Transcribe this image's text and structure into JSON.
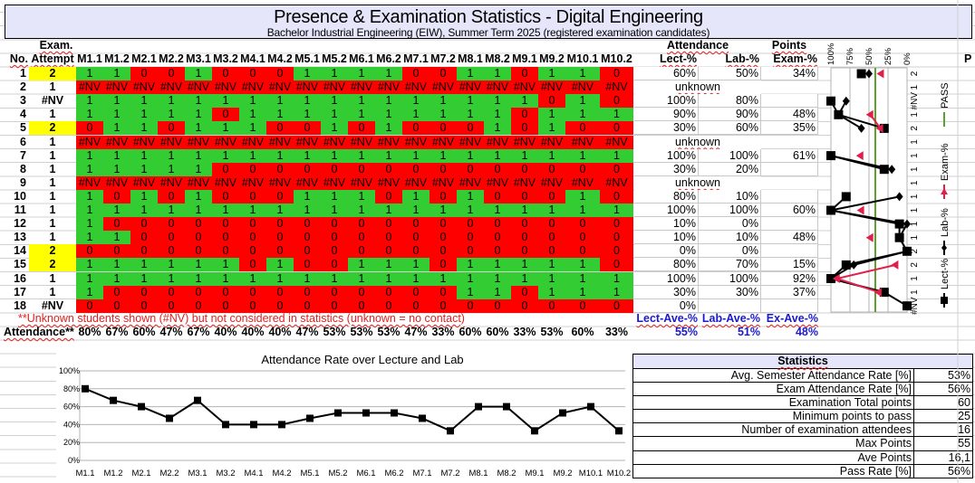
{
  "title": "Presence & Examination Statistics - Digital Engineering",
  "subtitle": "Bachelor Industrial Engineering (EIW), Summer Term 2025 (registered examination candidates)",
  "headers": {
    "no": "No.",
    "exam_top": "Exam.",
    "attempt": "Attempt",
    "attendance_group": "Attendance",
    "points_group": "Points",
    "lect": "Lect-%",
    "lab": "Lab-%",
    "exam": "Exam-%",
    "cut_column": "P"
  },
  "modules": [
    "M1.1",
    "M1.2",
    "M2.1",
    "M2.2",
    "M3.1",
    "M3.2",
    "M4.1",
    "M4.2",
    "M5.1",
    "M5.2",
    "M6.1",
    "M6.2",
    "M7.1",
    "M7.2",
    "M8.1",
    "M8.2",
    "M9.1",
    "M9.2",
    "M10.1",
    "M10.2"
  ],
  "colors": {
    "present": "#33cc33",
    "absent": "#ff0000",
    "repeat_attempt": "#ffff00",
    "header_fill": "#e6e6fa",
    "average_text": "#1a1acc",
    "pass_line": "#5aa02c",
    "exam_series": "#e0204a"
  },
  "unknown_label": "unknown",
  "rows": [
    {
      "no": "1",
      "attempt": "2",
      "marks": [
        "1",
        "1",
        "0",
        "0",
        "1",
        "0",
        "0",
        "0",
        "1",
        "1",
        "1",
        "1",
        "0",
        "0",
        "1",
        "1",
        "0",
        "1",
        "1",
        "0"
      ],
      "lect": "60%",
      "lab": "50%",
      "exam": "34%"
    },
    {
      "no": "2",
      "attempt": "1",
      "marks": [
        "#NV",
        "#NV",
        "#NV",
        "#NV",
        "#NV",
        "#NV",
        "#NV",
        "#NV",
        "#NV",
        "#NV",
        "#NV",
        "#NV",
        "#NV",
        "#NV",
        "#NV",
        "#NV",
        "#NV",
        "#NV",
        "#NV",
        "#NV"
      ],
      "unknown": true
    },
    {
      "no": "3",
      "attempt": "#NV",
      "marks": [
        "1",
        "1",
        "1",
        "1",
        "1",
        "1",
        "1",
        "1",
        "1",
        "1",
        "1",
        "1",
        "1",
        "1",
        "1",
        "1",
        "1",
        "0",
        "1",
        "0"
      ],
      "lect": "100%",
      "lab": "80%",
      "exam": ""
    },
    {
      "no": "4",
      "attempt": "1",
      "marks": [
        "1",
        "1",
        "1",
        "1",
        "1",
        "0",
        "1",
        "1",
        "1",
        "1",
        "1",
        "1",
        "1",
        "1",
        "1",
        "1",
        "0",
        "1",
        "1",
        "1"
      ],
      "lect": "90%",
      "lab": "90%",
      "exam": "48%"
    },
    {
      "no": "5",
      "attempt": "2",
      "marks": [
        "0",
        "1",
        "1",
        "0",
        "1",
        "1",
        "1",
        "0",
        "0",
        "1",
        "0",
        "1",
        "0",
        "0",
        "0",
        "1",
        "0",
        "1",
        "0",
        "0"
      ],
      "lect": "30%",
      "lab": "60%",
      "exam": "35%"
    },
    {
      "no": "6",
      "attempt": "1",
      "marks": [
        "#NV",
        "#NV",
        "#NV",
        "#NV",
        "#NV",
        "#NV",
        "#NV",
        "#NV",
        "#NV",
        "#NV",
        "#NV",
        "#NV",
        "#NV",
        "#NV",
        "#NV",
        "#NV",
        "#NV",
        "#NV",
        "#NV",
        "#NV"
      ],
      "unknown": true
    },
    {
      "no": "7",
      "attempt": "1",
      "marks": [
        "1",
        "1",
        "1",
        "1",
        "1",
        "1",
        "1",
        "1",
        "1",
        "1",
        "1",
        "1",
        "1",
        "1",
        "1",
        "1",
        "1",
        "1",
        "1",
        "1"
      ],
      "lect": "100%",
      "lab": "100%",
      "exam": "61%"
    },
    {
      "no": "8",
      "attempt": "1",
      "marks": [
        "1",
        "1",
        "1",
        "1",
        "1",
        "0",
        "0",
        "0",
        "0",
        "0",
        "0",
        "0",
        "0",
        "0",
        "0",
        "0",
        "0",
        "0",
        "0",
        "0"
      ],
      "lect": "30%",
      "lab": "20%",
      "exam": ""
    },
    {
      "no": "9",
      "attempt": "1",
      "marks": [
        "#NV",
        "#NV",
        "#NV",
        "#NV",
        "#NV",
        "#NV",
        "#NV",
        "#NV",
        "#NV",
        "#NV",
        "#NV",
        "#NV",
        "#NV",
        "#NV",
        "#NV",
        "#NV",
        "#NV",
        "#NV",
        "#NV",
        "#NV"
      ],
      "unknown": true
    },
    {
      "no": "10",
      "attempt": "1",
      "marks": [
        "1",
        "0",
        "1",
        "0",
        "1",
        "0",
        "0",
        "0",
        "1",
        "1",
        "1",
        "0",
        "1",
        "0",
        "1",
        "0",
        "0",
        "0",
        "1",
        "0"
      ],
      "lect": "80%",
      "lab": "10%",
      "exam": ""
    },
    {
      "no": "11",
      "attempt": "1",
      "marks": [
        "1",
        "1",
        "1",
        "1",
        "1",
        "1",
        "1",
        "1",
        "1",
        "1",
        "1",
        "1",
        "1",
        "1",
        "1",
        "1",
        "1",
        "1",
        "1",
        "1"
      ],
      "lect": "100%",
      "lab": "100%",
      "exam": "60%"
    },
    {
      "no": "12",
      "attempt": "1",
      "marks": [
        "1",
        "0",
        "0",
        "0",
        "0",
        "0",
        "0",
        "0",
        "0",
        "0",
        "0",
        "0",
        "0",
        "0",
        "0",
        "0",
        "0",
        "0",
        "0",
        "0"
      ],
      "lect": "10%",
      "lab": "0%",
      "exam": ""
    },
    {
      "no": "13",
      "attempt": "1",
      "marks": [
        "1",
        "1",
        "0",
        "0",
        "0",
        "0",
        "0",
        "0",
        "0",
        "0",
        "0",
        "0",
        "0",
        "0",
        "0",
        "0",
        "0",
        "0",
        "0",
        "0"
      ],
      "lect": "10%",
      "lab": "10%",
      "exam": "48%"
    },
    {
      "no": "14",
      "attempt": "2",
      "marks": [
        "0",
        "0",
        "0",
        "0",
        "0",
        "0",
        "0",
        "0",
        "0",
        "0",
        "0",
        "0",
        "0",
        "0",
        "0",
        "0",
        "0",
        "0",
        "0",
        "0"
      ],
      "lect": "0%",
      "lab": "0%",
      "exam": ""
    },
    {
      "no": "15",
      "attempt": "2",
      "marks": [
        "1",
        "1",
        "1",
        "1",
        "1",
        "1",
        "0",
        "1",
        "0",
        "0",
        "1",
        "1",
        "1",
        "0",
        "1",
        "1",
        "1",
        "1",
        "1",
        "0"
      ],
      "lect": "80%",
      "lab": "70%",
      "exam": "15%"
    },
    {
      "no": "16",
      "attempt": "1",
      "marks": [
        "1",
        "1",
        "1",
        "1",
        "1",
        "1",
        "1",
        "1",
        "1",
        "1",
        "1",
        "1",
        "1",
        "1",
        "1",
        "1",
        "1",
        "1",
        "1",
        "1"
      ],
      "lect": "100%",
      "lab": "100%",
      "exam": "92%"
    },
    {
      "no": "17",
      "attempt": "1",
      "marks": [
        "1",
        "0",
        "0",
        "0",
        "0",
        "0",
        "0",
        "0",
        "0",
        "0",
        "0",
        "0",
        "0",
        "0",
        "1",
        "1",
        "0",
        "1",
        "1",
        "1"
      ],
      "lect": "30%",
      "lab": "30%",
      "exam": "37%"
    },
    {
      "no": "18",
      "attempt": "#NV",
      "marks": [
        "0",
        "0",
        "0",
        "0",
        "0",
        "0",
        "0",
        "0",
        "0",
        "0",
        "0",
        "0",
        "0",
        "0",
        "0",
        "0",
        "0",
        "0",
        "0",
        "0"
      ],
      "lect": "0%",
      "lab": "",
      "exam": ""
    }
  ],
  "notes": "**Unknown students shown (#NV) but not considered in statistics (unknown = no contact)",
  "averages": {
    "lect_label": "Lect-Ave-%",
    "lab_label": "Lab-Ave-%",
    "exam_label": "Ex-Ave-%",
    "lect": "55%",
    "lab": "51%",
    "exam": "48%"
  },
  "attendance_label": "Attendance**",
  "attendance": [
    "80%",
    "67%",
    "60%",
    "47%",
    "67%",
    "40%",
    "40%",
    "40%",
    "47%",
    "53%",
    "53%",
    "53%",
    "47%",
    "33%",
    "60%",
    "60%",
    "33%",
    "53%",
    "60%",
    "33%"
  ],
  "statistics": {
    "title": "Statistics",
    "items": [
      {
        "label": "Avg. Semester Attendance Rate [%]",
        "value": "53%"
      },
      {
        "label": "Exam Attendance Rate [%]",
        "value": "56%"
      },
      {
        "label": "Examination Total points",
        "value": "60"
      },
      {
        "label": "Minimum points to pass",
        "value": "25"
      },
      {
        "label": "Number of examination attendees",
        "value": "16"
      },
      {
        "label": "Max Points",
        "value": "55"
      },
      {
        "label": "Ave Points",
        "value": "16,1"
      },
      {
        "label": "Pass Rate [%]",
        "value": "56%"
      }
    ]
  },
  "chart_data": [
    {
      "type": "line",
      "title": "Attendance Rate over Lecture and Lab",
      "categories": [
        "M1.1",
        "M1.2",
        "M2.1",
        "M2.2",
        "M3.1",
        "M3.2",
        "M4.1",
        "M4.2",
        "M5.1",
        "M5.2",
        "M6.1",
        "M6.2",
        "M7.1",
        "M7.2",
        "M8.1",
        "M8.2",
        "M9.1",
        "M9.2",
        "M10.1",
        "M10.2"
      ],
      "values": [
        80,
        67,
        60,
        47,
        67,
        40,
        40,
        40,
        47,
        53,
        53,
        53,
        47,
        33,
        60,
        60,
        33,
        53,
        60,
        33
      ],
      "ylim": [
        0,
        100
      ],
      "yticks": [
        "0%",
        "20%",
        "40%",
        "60%",
        "80%",
        "100%"
      ],
      "grid": true,
      "marker": "square"
    },
    {
      "type": "line",
      "orientation": "rotated",
      "categories": [
        "2",
        "1",
        "#NV",
        "1",
        "2",
        "1",
        "1",
        "1",
        "1",
        "1",
        "1",
        "1",
        "1",
        "2",
        "2",
        "1",
        "1",
        "#NV"
      ],
      "xticks": [
        "100%",
        "75%",
        "50%",
        "25%",
        "0%"
      ],
      "xlim": [
        0,
        100
      ],
      "grid": true,
      "legend": "right",
      "series": [
        {
          "name": "Lect-%",
          "values": [
            60,
            null,
            100,
            90,
            30,
            null,
            100,
            30,
            null,
            80,
            100,
            10,
            10,
            0,
            80,
            100,
            30,
            0
          ]
        },
        {
          "name": "Lab-%",
          "values": [
            50,
            null,
            80,
            90,
            60,
            null,
            100,
            20,
            null,
            10,
            100,
            0,
            10,
            0,
            70,
            100,
            30,
            null
          ]
        },
        {
          "name": "Exam-%",
          "values": [
            34,
            null,
            null,
            48,
            35,
            null,
            61,
            null,
            null,
            null,
            60,
            null,
            48,
            null,
            15,
            92,
            37,
            null
          ]
        },
        {
          "name": "PASS",
          "constant": 41.7
        }
      ]
    }
  ]
}
